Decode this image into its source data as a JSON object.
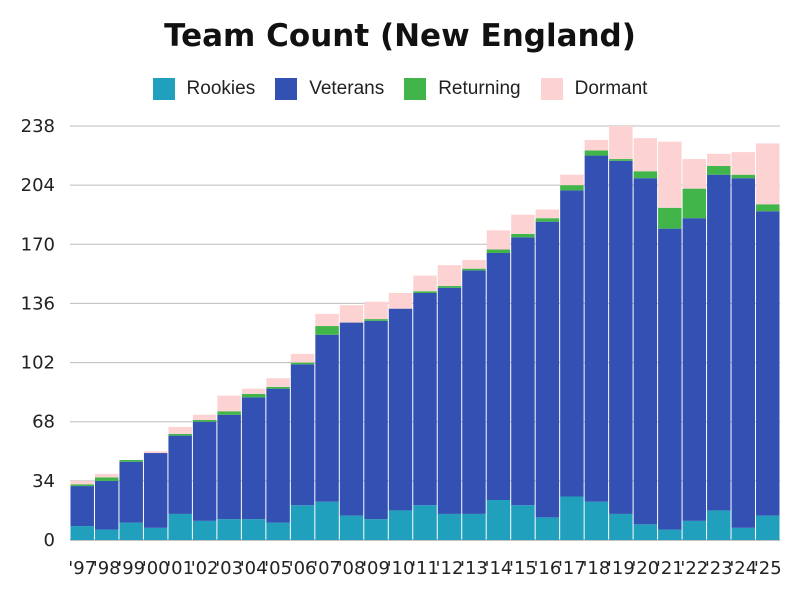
{
  "chart_data": {
    "type": "bar",
    "stacked": true,
    "title": "Team Count (New England)",
    "categories": [
      "'97",
      "'98",
      "'99",
      "'00",
      "'01",
      "'02",
      "'03",
      "'04",
      "'05",
      "'06",
      "'07",
      "'08",
      "'09",
      "'10",
      "'11",
      "'12",
      "'13",
      "'14",
      "'15",
      "'16",
      "'17",
      "'18",
      "'19",
      "'20",
      "'21",
      "'22",
      "'23",
      "'24",
      "'25"
    ],
    "series": [
      {
        "name": "Rookies",
        "color": "#21a0be",
        "values": [
          8,
          6,
          10,
          7,
          15,
          11,
          12,
          12,
          10,
          20,
          22,
          14,
          12,
          17,
          20,
          15,
          15,
          23,
          20,
          13,
          25,
          22,
          15,
          9,
          6,
          11,
          17,
          7,
          14
        ]
      },
      {
        "name": "Veterans",
        "color": "#3351b3",
        "values": [
          23,
          28,
          35,
          43,
          45,
          57,
          60,
          70,
          77,
          81,
          96,
          111,
          114,
          116,
          122,
          130,
          140,
          142,
          154,
          170,
          176,
          199,
          203,
          199,
          173,
          174,
          193,
          201,
          175
        ]
      },
      {
        "name": "Returning",
        "color": "#41b54a",
        "values": [
          1,
          2,
          1,
          0,
          1,
          1,
          2,
          2,
          1,
          1,
          5,
          0,
          1,
          0,
          1,
          1,
          1,
          2,
          2,
          2,
          3,
          3,
          1,
          4,
          12,
          17,
          5,
          2,
          4
        ]
      },
      {
        "name": "Dormant",
        "color": "#fdd2d3",
        "values": [
          2,
          2,
          0,
          1,
          4,
          3,
          9,
          3,
          5,
          5,
          7,
          10,
          10,
          9,
          9,
          12,
          5,
          11,
          11,
          5,
          6,
          6,
          19,
          19,
          38,
          17,
          7,
          13,
          35
        ]
      }
    ],
    "y_ticks": [
      0,
      34,
      68,
      102,
      136,
      170,
      204,
      238
    ],
    "ylim": [
      0,
      238
    ],
    "xlabel": "",
    "ylabel": "",
    "grid": true,
    "legend_position": "top"
  }
}
